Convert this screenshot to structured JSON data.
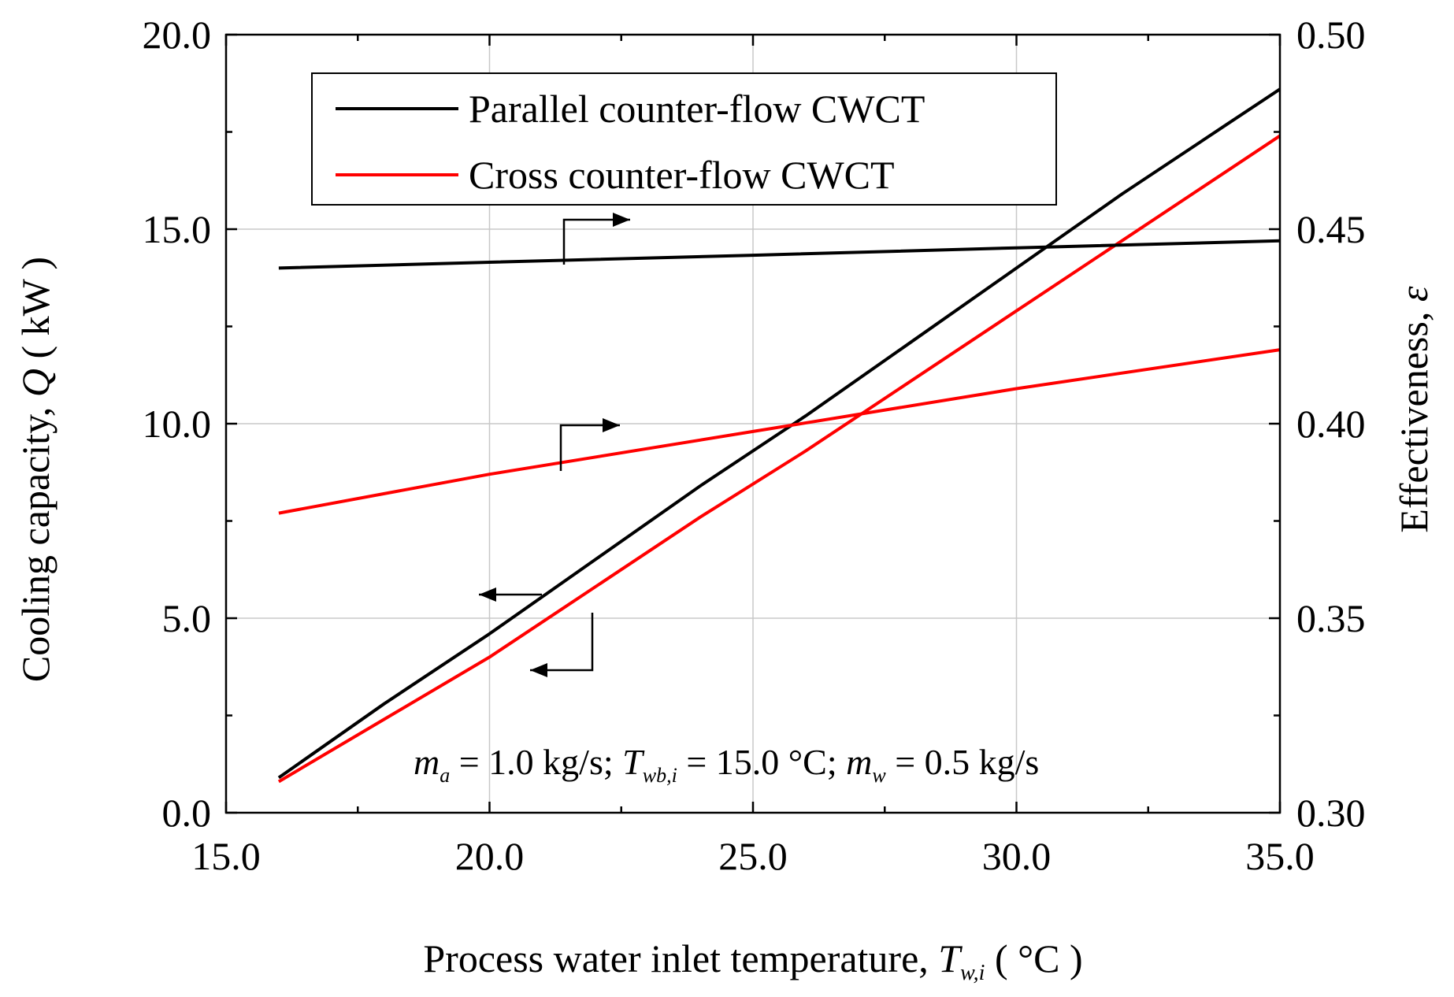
{
  "chart_data": {
    "type": "line",
    "x_axis": {
      "label_prefix": "Process water inlet temperature, ",
      "symbol": "T",
      "subscript": "w,i",
      "label_suffix": " ( °C )",
      "range": [
        15,
        35
      ],
      "ticks": [
        15,
        20,
        25,
        30,
        35
      ],
      "tick_labels": [
        "15.0",
        "20.0",
        "25.0",
        "30.0",
        "35.0"
      ]
    },
    "y_left": {
      "label_prefix": "Cooling capacity, ",
      "symbol": "Q",
      "label_suffix": " ( kW )",
      "range": [
        0,
        20
      ],
      "ticks": [
        0,
        5,
        10,
        15,
        20
      ],
      "tick_labels": [
        "0.0",
        "5.0",
        "10.0",
        "15.0",
        "20.0"
      ]
    },
    "y_right": {
      "label_prefix": "Effectiveness, ",
      "symbol": "ε",
      "range": [
        0.3,
        0.5
      ],
      "ticks": [
        0.3,
        0.35,
        0.4,
        0.45,
        0.5
      ],
      "tick_labels": [
        "0.30",
        "0.35",
        "0.40",
        "0.45",
        "0.50"
      ]
    },
    "grid": true,
    "legend": {
      "position": "top-left",
      "entries": [
        {
          "name": "Parallel counter-flow CWCT",
          "color": "#000000"
        },
        {
          "name": "Cross counter-flow CWCT",
          "color": "#ff0000"
        }
      ]
    },
    "series": [
      {
        "name": "Parallel counter-flow CWCT",
        "quantity": "cooling capacity",
        "axis": "left",
        "color": "#000000",
        "x": [
          16,
          18,
          20,
          22,
          24,
          26,
          28,
          30,
          32,
          34,
          35
        ],
        "y": [
          0.9,
          2.8,
          4.6,
          6.5,
          8.4,
          10.2,
          12.1,
          14.0,
          15.9,
          17.7,
          18.6
        ]
      },
      {
        "name": "Cross counter-flow CWCT",
        "quantity": "cooling capacity",
        "axis": "left",
        "color": "#ff0000",
        "x": [
          16,
          18,
          20,
          22,
          24,
          26,
          28,
          30,
          32,
          34,
          35
        ],
        "y": [
          0.8,
          2.4,
          4.0,
          5.8,
          7.6,
          9.3,
          11.1,
          12.9,
          14.7,
          16.5,
          17.4
        ]
      },
      {
        "name": "Parallel counter-flow CWCT",
        "quantity": "effectiveness",
        "axis": "right",
        "color": "#000000",
        "x": [
          16,
          20,
          25,
          30,
          35
        ],
        "y": [
          0.44,
          0.4415,
          0.4433,
          0.4452,
          0.447
        ]
      },
      {
        "name": "Cross counter-flow CWCT",
        "quantity": "effectiveness",
        "axis": "right",
        "color": "#ff0000",
        "x": [
          16,
          20,
          25,
          30,
          35
        ],
        "y": [
          0.377,
          0.387,
          0.398,
          0.409,
          0.419
        ]
      }
    ],
    "annotation": {
      "m_a": "m",
      "m_a_sub": "a",
      "m_a_value": " = 1.0 kg/s; ",
      "t_wb": "T",
      "t_wb_sub": "wb,i",
      "t_wb_value": " = 15.0 °C; ",
      "m_w": "m",
      "m_w_sub": "w",
      "m_w_value": " = 0.5 kg/s"
    }
  }
}
